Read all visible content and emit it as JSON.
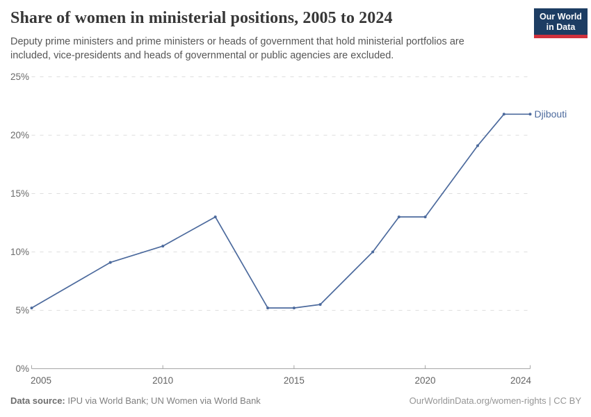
{
  "header": {
    "title": "Share of women in ministerial positions, 2005 to 2024",
    "subtitle": "Deputy prime ministers and prime ministers or heads of government that hold ministerial portfolios are included, vice-presidents and heads of governmental or public agencies are excluded.",
    "logo": {
      "line1": "Our World",
      "line2": "in Data",
      "bg_color": "#1d3d63",
      "accent_color": "#d0313d"
    }
  },
  "chart_data": {
    "type": "line",
    "title": "Share of women in ministerial positions, 2005 to 2024",
    "xlabel": "",
    "ylabel": "",
    "xlim": [
      2005,
      2024
    ],
    "ylim": [
      0,
      25
    ],
    "x_ticks": [
      2005,
      2010,
      2015,
      2020,
      2024
    ],
    "x_tick_labels": [
      "2005",
      "2010",
      "2015",
      "2020",
      "2024"
    ],
    "y_ticks": [
      0,
      5,
      10,
      15,
      20,
      25
    ],
    "y_tick_labels": [
      "0%",
      "5%",
      "10%",
      "15%",
      "20%",
      "25%"
    ],
    "grid": "horizontal-dashed",
    "legend_position": "end-of-line",
    "series": [
      {
        "name": "Djibouti",
        "color": "#4c6a9d",
        "points": [
          [
            2005,
            5.2
          ],
          [
            2008,
            9.1
          ],
          [
            2010,
            10.5
          ],
          [
            2012,
            13.0
          ],
          [
            2014,
            5.2
          ],
          [
            2015,
            5.2
          ],
          [
            2016,
            5.5
          ],
          [
            2018,
            10.0
          ],
          [
            2019,
            13.0
          ],
          [
            2020,
            13.0
          ],
          [
            2022,
            19.1
          ],
          [
            2023,
            21.8
          ],
          [
            2024,
            21.8
          ]
        ]
      }
    ]
  },
  "footer": {
    "datasource_label": "Data source:",
    "datasource_value": " IPU via World Bank; UN Women via World Bank",
    "link": "OurWorldinData.org/women-rights | CC BY"
  }
}
